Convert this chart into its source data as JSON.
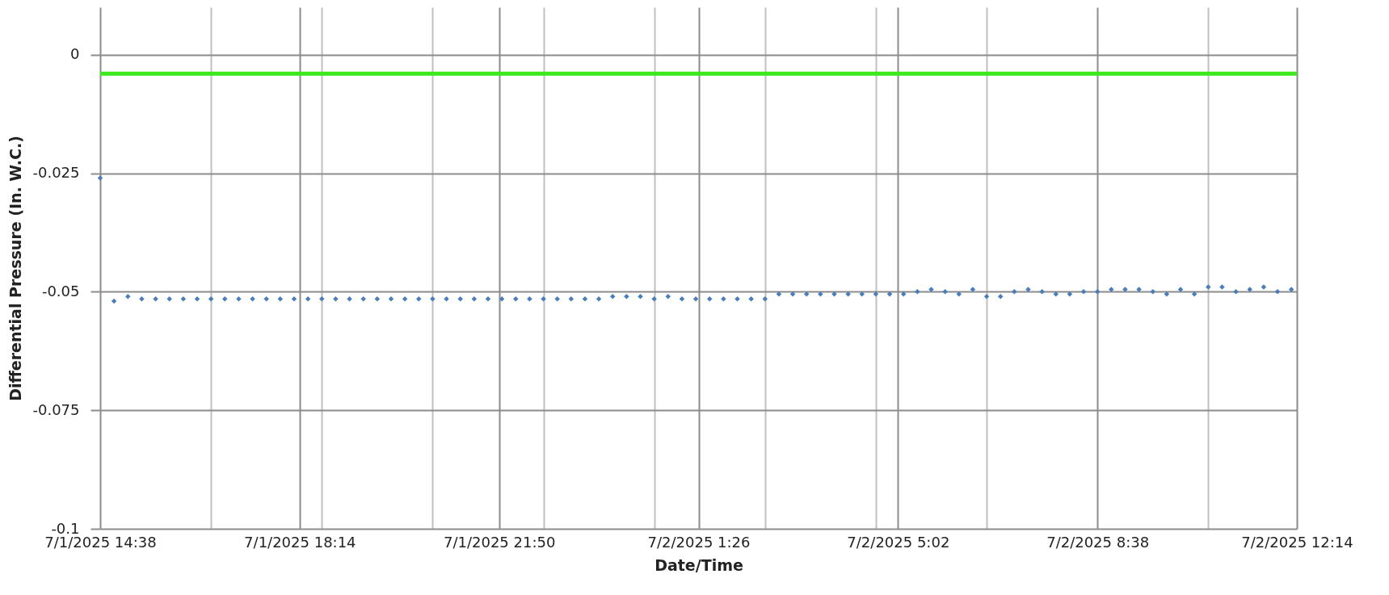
{
  "chart_data": {
    "type": "scatter",
    "xlabel": "Date/Time",
    "ylabel": "Differential Pressure (In. W.C.)",
    "x": [
      "2025-07-01T14:38",
      "2025-07-01T14:53",
      "2025-07-01T15:08",
      "2025-07-01T15:23",
      "2025-07-01T15:38",
      "2025-07-01T15:53",
      "2025-07-01T16:08",
      "2025-07-01T16:23",
      "2025-07-01T16:38",
      "2025-07-01T16:53",
      "2025-07-01T17:08",
      "2025-07-01T17:23",
      "2025-07-01T17:38",
      "2025-07-01T17:53",
      "2025-07-01T18:08",
      "2025-07-01T18:23",
      "2025-07-01T18:38",
      "2025-07-01T18:53",
      "2025-07-01T19:08",
      "2025-07-01T19:23",
      "2025-07-01T19:38",
      "2025-07-01T19:53",
      "2025-07-01T20:08",
      "2025-07-01T20:23",
      "2025-07-01T20:38",
      "2025-07-01T20:53",
      "2025-07-01T21:08",
      "2025-07-01T21:23",
      "2025-07-01T21:38",
      "2025-07-01T21:53",
      "2025-07-01T22:08",
      "2025-07-01T22:23",
      "2025-07-01T22:38",
      "2025-07-01T22:53",
      "2025-07-01T23:08",
      "2025-07-01T23:23",
      "2025-07-01T23:38",
      "2025-07-01T23:53",
      "2025-07-02T00:08",
      "2025-07-02T00:23",
      "2025-07-02T00:38",
      "2025-07-02T00:53",
      "2025-07-02T01:08",
      "2025-07-02T01:23",
      "2025-07-02T01:38",
      "2025-07-02T01:53",
      "2025-07-02T02:08",
      "2025-07-02T02:23",
      "2025-07-02T02:38",
      "2025-07-02T02:53",
      "2025-07-02T03:08",
      "2025-07-02T03:23",
      "2025-07-02T03:38",
      "2025-07-02T03:53",
      "2025-07-02T04:08",
      "2025-07-02T04:23",
      "2025-07-02T04:38",
      "2025-07-02T04:53",
      "2025-07-02T05:08",
      "2025-07-02T05:23",
      "2025-07-02T05:38",
      "2025-07-02T05:53",
      "2025-07-02T06:08",
      "2025-07-02T06:23",
      "2025-07-02T06:38",
      "2025-07-02T06:53",
      "2025-07-02T07:08",
      "2025-07-02T07:23",
      "2025-07-02T07:38",
      "2025-07-02T07:53",
      "2025-07-02T08:08",
      "2025-07-02T08:23",
      "2025-07-02T08:38",
      "2025-07-02T08:53",
      "2025-07-02T09:08",
      "2025-07-02T09:23",
      "2025-07-02T09:38",
      "2025-07-02T09:53",
      "2025-07-02T10:08",
      "2025-07-02T10:23",
      "2025-07-02T10:38",
      "2025-07-02T10:53",
      "2025-07-02T11:08",
      "2025-07-02T11:23",
      "2025-07-02T11:38",
      "2025-07-02T11:53",
      "2025-07-02T12:08"
    ],
    "series": [
      {
        "color": "#4a7ebb",
        "values": [
          -0.026,
          -0.052,
          -0.051,
          -0.0515,
          -0.0515,
          -0.0515,
          -0.0515,
          -0.0515,
          -0.0515,
          -0.0515,
          -0.0515,
          -0.0515,
          -0.0515,
          -0.0515,
          -0.0515,
          -0.0515,
          -0.0515,
          -0.0515,
          -0.0515,
          -0.0515,
          -0.0515,
          -0.0515,
          -0.0515,
          -0.0515,
          -0.0515,
          -0.0515,
          -0.0515,
          -0.0515,
          -0.0515,
          -0.0515,
          -0.0515,
          -0.0515,
          -0.0515,
          -0.0515,
          -0.0515,
          -0.0515,
          -0.0515,
          -0.051,
          -0.051,
          -0.051,
          -0.0515,
          -0.051,
          -0.0515,
          -0.0515,
          -0.0515,
          -0.0515,
          -0.0515,
          -0.0515,
          -0.0515,
          -0.0505,
          -0.0505,
          -0.0505,
          -0.0505,
          -0.0505,
          -0.0505,
          -0.0505,
          -0.0505,
          -0.0505,
          -0.0505,
          -0.05,
          -0.0495,
          -0.05,
          -0.0505,
          -0.0495,
          -0.051,
          -0.051,
          -0.05,
          -0.0495,
          -0.05,
          -0.0505,
          -0.0505,
          -0.05,
          -0.05,
          -0.0495,
          -0.0495,
          -0.0495,
          -0.05,
          -0.0505,
          -0.0495,
          -0.0505,
          -0.049,
          -0.049,
          -0.05,
          -0.0495,
          -0.049,
          -0.05,
          -0.0495
        ]
      }
    ],
    "marker": "diamond",
    "xlim": [
      "2025-07-01T14:38",
      "2025-07-02T12:14"
    ],
    "xticks": [
      {
        "value": "2025-07-01T14:38",
        "label": "7/1/2025 14:38"
      },
      {
        "value": "2025-07-01T16:38",
        "label": null
      },
      {
        "value": "2025-07-01T18:14",
        "label": "7/1/2025 18:14"
      },
      {
        "value": "2025-07-01T18:38",
        "label": null
      },
      {
        "value": "2025-07-01T20:38",
        "label": null
      },
      {
        "value": "2025-07-01T21:50",
        "label": "7/1/2025 21:50"
      },
      {
        "value": "2025-07-01T22:38",
        "label": null
      },
      {
        "value": "2025-07-02T00:38",
        "label": null
      },
      {
        "value": "2025-07-02T01:26",
        "label": "7/2/2025 1:26"
      },
      {
        "value": "2025-07-02T02:38",
        "label": null
      },
      {
        "value": "2025-07-02T04:38",
        "label": null
      },
      {
        "value": "2025-07-02T05:02",
        "label": "7/2/2025 5:02"
      },
      {
        "value": "2025-07-02T06:38",
        "label": null
      },
      {
        "value": "2025-07-02T08:38",
        "label": "7/2/2025 8:38"
      },
      {
        "value": "2025-07-02T10:38",
        "label": null
      },
      {
        "value": "2025-07-02T12:14",
        "label": "7/2/2025 12:14"
      }
    ],
    "ylim": [
      -0.1,
      0.01
    ],
    "yticks": [
      -0.1,
      -0.075,
      -0.05,
      -0.025,
      0
    ],
    "ref_lines": [
      {
        "axis": "y",
        "value": -0.004,
        "color": "#3ce81e"
      }
    ],
    "grid": true
  }
}
